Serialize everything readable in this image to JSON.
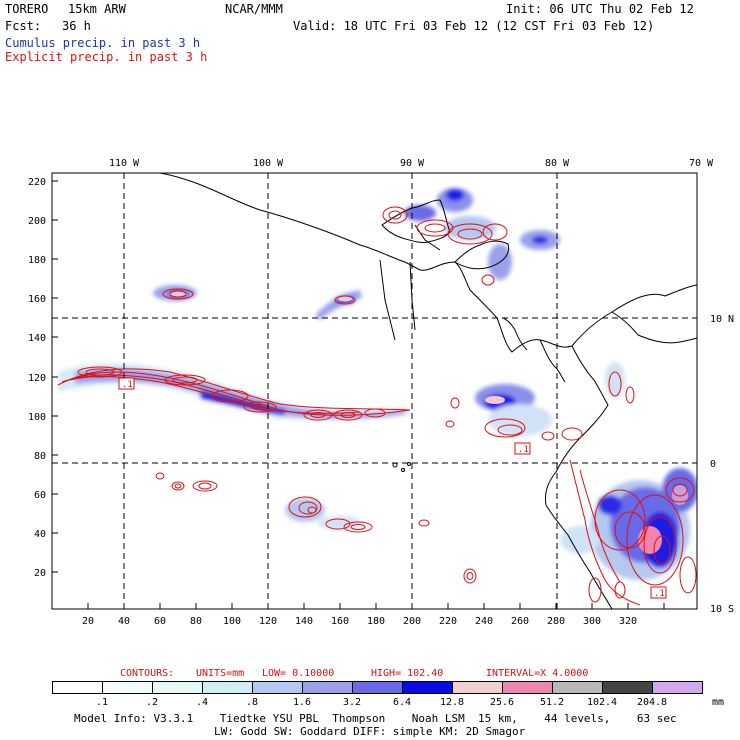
{
  "header": {
    "model": "TORERO",
    "resolution": "15km ARW",
    "org": "NCAR/MMM",
    "init": "Init: 06 UTC Thu 02 Feb 12",
    "fcst_label": "Fcst:",
    "fcst_value": "36 h",
    "valid": "Valid: 18 UTC Fri 03 Feb 12 (12 CST Fri 03 Feb 12)",
    "cumulus": "Cumulus precip. in past 3 h",
    "explicit": "Explicit precip. in past 3 h"
  },
  "map": {
    "lon_labels": [
      "110 W",
      "100 W",
      "90 W",
      "80 W",
      "70 W"
    ],
    "lat_labels": [
      "10 N",
      "0",
      "10 S"
    ],
    "y_ticks": [
      "220",
      "200",
      "180",
      "160",
      "140",
      "120",
      "100",
      "80",
      "60",
      "40",
      "20"
    ],
    "x_ticks": [
      "20",
      "40",
      "60",
      "80",
      "100",
      "120",
      "140",
      "160",
      "180",
      "200",
      "220",
      "240",
      "260",
      "280",
      "300",
      "320"
    ],
    "contour_boxes": [
      ".1",
      ".1",
      ".1"
    ]
  },
  "contours_line": {
    "label": "CONTOURS:",
    "units": "UNITS=mm",
    "low": "LOW= 0.10000",
    "high": "HIGH= 102.40",
    "interval": "INTERVAL=X 4.0000"
  },
  "legend": {
    "unit": "mm",
    "labels": [
      ".1",
      ".2",
      ".4",
      ".8",
      "1.6",
      "3.2",
      "6.4",
      "12.8",
      "25.6",
      "51.2",
      "102.4",
      "204.8"
    ],
    "colors": [
      "#ffffff",
      "#f4fbfb",
      "#e6f8f8",
      "#d2eef5",
      "#b4c8f0",
      "#9aa0ea",
      "#6a6ae8",
      "#0a0ae6",
      "#f2d0d0",
      "#f085b0",
      "#b8b8b8",
      "#444444",
      "#d2a8ea"
    ]
  },
  "model_info": {
    "line1": "Model Info: V3.3.1    Tiedtke YSU PBL  Thompson    Noah LSM  15 km,    44 levels,    63 sec",
    "line2": "LW: Godd SW: Goddard DIFF: simple KM: 2D Smagor"
  }
}
